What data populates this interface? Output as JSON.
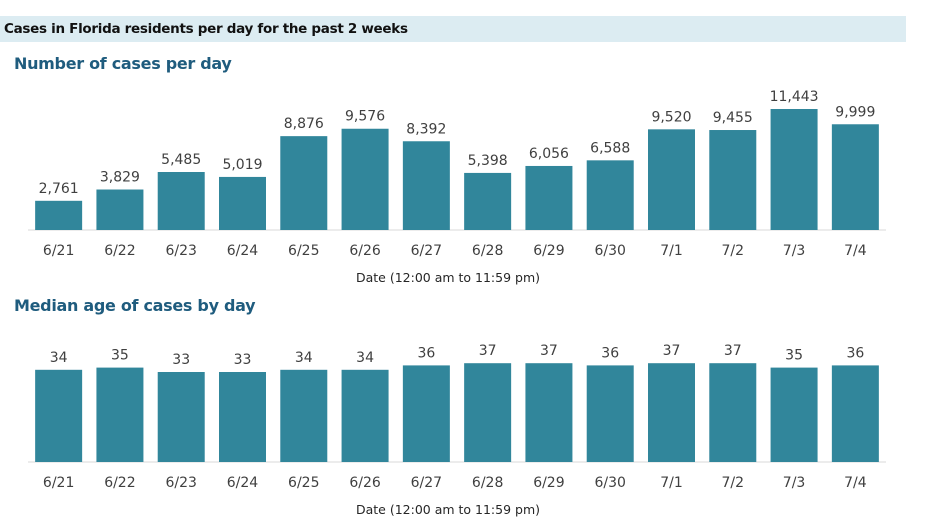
{
  "page_title": "Cases in Florida residents per day for the past 2 weeks",
  "colors": {
    "bar": "#31869b",
    "title": "#1f5c7e",
    "header_band": "#dcecf2"
  },
  "chart_data": [
    {
      "type": "bar",
      "title": "Number of cases per day",
      "xlabel": "Date (12:00 am to 11:59 pm)",
      "ylabel": "",
      "categories": [
        "6/21",
        "6/22",
        "6/23",
        "6/24",
        "6/25",
        "6/26",
        "6/27",
        "6/28",
        "6/29",
        "6/30",
        "7/1",
        "7/2",
        "7/3",
        "7/4"
      ],
      "values": [
        2761,
        3829,
        5485,
        5019,
        8876,
        9576,
        8392,
        5398,
        6056,
        6588,
        9520,
        9455,
        11443,
        9999
      ],
      "labels": [
        "2,761",
        "3,829",
        "5,485",
        "5,019",
        "8,876",
        "9,576",
        "8,392",
        "5,398",
        "6,056",
        "6,588",
        "9,520",
        "9,455",
        "11,443",
        "9,999"
      ],
      "ylim": [
        0,
        11443
      ],
      "grid": false,
      "legend": "none"
    },
    {
      "type": "bar",
      "title": "Median age of cases by day",
      "xlabel": "Date (12:00 am to 11:59 pm)",
      "ylabel": "",
      "categories": [
        "6/21",
        "6/22",
        "6/23",
        "6/24",
        "6/25",
        "6/26",
        "6/27",
        "6/28",
        "6/29",
        "6/30",
        "7/1",
        "7/2",
        "7/3",
        "7/4"
      ],
      "values": [
        34,
        35,
        33,
        33,
        34,
        34,
        36,
        37,
        37,
        36,
        37,
        37,
        35,
        36
      ],
      "labels": [
        "34",
        "35",
        "33",
        "33",
        "34",
        "34",
        "36",
        "37",
        "37",
        "36",
        "37",
        "37",
        "35",
        "36"
      ],
      "ylim": [
        0,
        37
      ],
      "grid": false,
      "legend": "none"
    }
  ]
}
